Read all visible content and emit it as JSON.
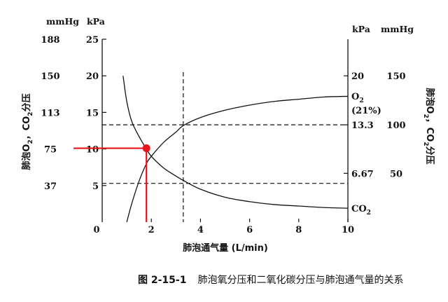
{
  "chart_data": {
    "type": "line",
    "caption": {
      "number": "图 2-15-1",
      "text": "肺泡氧分压和二氧化碳分压与肺泡通气量的关系"
    },
    "xlabel": "肺泡通气量 (L/min)",
    "xlim": [
      0,
      10
    ],
    "x_ticks": [
      0,
      2,
      4,
      6,
      8,
      10
    ],
    "ylim_kpa": [
      0,
      25
    ],
    "left_axis": {
      "ylabel_parts": [
        "肺泡O",
        "2",
        "，CO",
        "2",
        "分压"
      ],
      "unit_mmhg": "mmHg",
      "unit_kpa": "kPa",
      "ticks_kpa": [
        {
          "kpa": 25,
          "kpa_label": "25",
          "mmhg_label": "188"
        },
        {
          "kpa": 20,
          "kpa_label": "20",
          "mmhg_label": "150"
        },
        {
          "kpa": 15,
          "kpa_label": "15",
          "mmhg_label": "113"
        },
        {
          "kpa": 10,
          "kpa_label": "10",
          "mmhg_label": "75"
        },
        {
          "kpa": 5,
          "kpa_label": "5",
          "mmhg_label": "37"
        }
      ]
    },
    "right_axis": {
      "ylabel_parts": [
        "肺泡O",
        "2",
        "，CO",
        "2",
        "分压"
      ],
      "unit_kpa": "kPa",
      "unit_mmhg": "mmHg",
      "kpa_ticks": [
        {
          "kpa": 20,
          "label": "20"
        },
        {
          "kpa": 13.3,
          "label": "13.3"
        },
        {
          "kpa": 6.67,
          "label": "6.67"
        }
      ],
      "mmhg_ticks": [
        {
          "kpa": 20,
          "label": "150"
        },
        {
          "kpa": 13.3,
          "label": "100"
        },
        {
          "kpa": 6.67,
          "label": "50"
        }
      ]
    },
    "series": [
      {
        "name_parts": [
          "O",
          "2"
        ],
        "extra_label": "(21%)",
        "color": "#111111",
        "x": [
          1.0,
          1.2,
          1.5,
          1.8,
          2.0,
          2.5,
          3.0,
          3.3,
          4.0,
          5.0,
          6.0,
          7.0,
          8.0,
          9.0,
          10.0
        ],
        "y": [
          0.0,
          2.5,
          5.6,
          8.0,
          9.0,
          10.9,
          12.3,
          13.2,
          14.3,
          15.3,
          16.0,
          16.5,
          16.8,
          17.1,
          17.2
        ]
      },
      {
        "name_parts": [
          "CO",
          "2"
        ],
        "color": "#111111",
        "x": [
          0.85,
          1.0,
          1.2,
          1.5,
          1.8,
          2.0,
          2.5,
          3.0,
          3.3,
          4.0,
          5.0,
          6.0,
          7.0,
          8.0,
          9.0,
          10.0
        ],
        "y": [
          20.0,
          16.5,
          13.8,
          11.7,
          10.0,
          9.0,
          7.4,
          6.3,
          5.7,
          4.5,
          3.4,
          2.8,
          2.4,
          2.2,
          2.0,
          1.9
        ]
      }
    ],
    "reference_lines": {
      "dashed_horizontal_kpa": [
        13.3,
        5.3
      ],
      "dashed_vertical_x": 3.3
    },
    "highlight": {
      "x": 1.8,
      "y": 10.1,
      "color": "#e8141c"
    },
    "grid": false
  }
}
